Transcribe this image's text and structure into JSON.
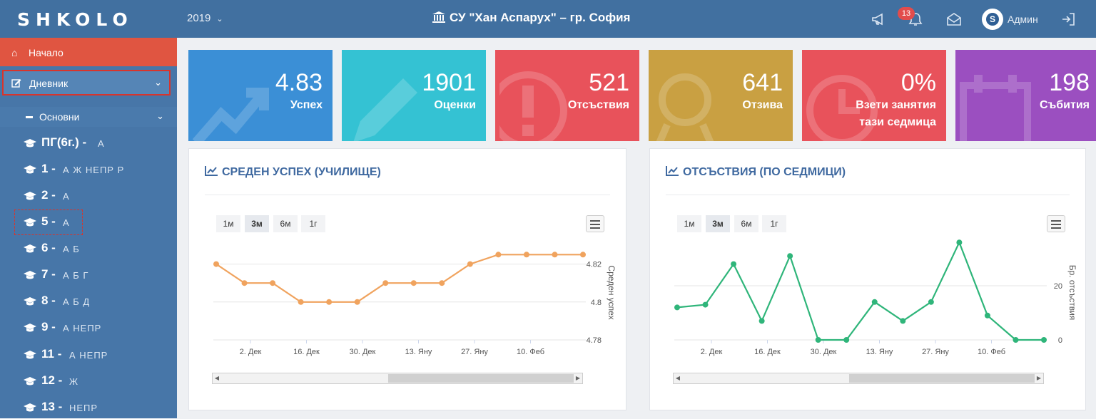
{
  "app": {
    "logo_text": "SHKOLO",
    "year": "2019",
    "school_title": "СУ \"Хан Аспарух\" – гр. София",
    "notification_count": "13",
    "user_initial": "S",
    "user_name": "Админ",
    "icons": [
      "megaphone-icon",
      "bell-icon",
      "envelope-icon",
      "logout-icon"
    ]
  },
  "sidebar": {
    "home": "Начало",
    "diary": "Дневник",
    "basic": "Основни",
    "grades": [
      {
        "num": "ПГ(6г.) -",
        "divs": "А"
      },
      {
        "num": "1 -",
        "divs": "А Ж НЕПР Р"
      },
      {
        "num": "2 -",
        "divs": "А"
      },
      {
        "num": "5 -",
        "divs": "А"
      },
      {
        "num": "6 -",
        "divs": "А Б"
      },
      {
        "num": "7 -",
        "divs": "А Б Г"
      },
      {
        "num": "8 -",
        "divs": "А Б Д"
      },
      {
        "num": "9 -",
        "divs": "А НЕПР"
      },
      {
        "num": "11 -",
        "divs": "А НЕПР"
      },
      {
        "num": "12 -",
        "divs": "Ж"
      },
      {
        "num": "13 -",
        "divs": "НЕПР"
      }
    ]
  },
  "tiles": [
    {
      "value": "4.83",
      "label": "Успех",
      "color": "#3b8fd6",
      "icon": "trend-up-icon"
    },
    {
      "value": "1901",
      "label": "Оценки",
      "color": "#34c2d3",
      "icon": "pencil-icon"
    },
    {
      "value": "521",
      "label": "Отсъствия",
      "color": "#e8525b",
      "icon": "exclamation-icon"
    },
    {
      "value": "641",
      "label": "Отзива",
      "color": "#c9a042",
      "icon": "magnifier-icon"
    },
    {
      "value": "0%",
      "label": "Взети занятия тази седмица",
      "label_line1": "Взети занятия",
      "label_line2": "тази седмица",
      "color": "#e8525b",
      "icon": "clock-icon"
    },
    {
      "value": "198",
      "label": "Събития",
      "color": "#9b4fc0",
      "icon": "calendar-icon"
    }
  ],
  "ranges": [
    "1м",
    "3м",
    "6м",
    "1г"
  ],
  "active_range": "3м",
  "chart_data": [
    {
      "type": "line",
      "title": "СРЕДЕН УСПЕХ (УЧИЛИЩЕ)",
      "ylabel": "Среден успех",
      "x_ticks": [
        "2. Дек",
        "16. Дек",
        "30. Дек",
        "13. Яну",
        "27. Яну",
        "10. Феб"
      ],
      "y_ticks": [
        4.82,
        4.8,
        4.78
      ],
      "ylim": [
        4.78,
        4.83
      ],
      "color": "#f0a35e",
      "series": [
        {
          "values": [
            4.82,
            4.81,
            4.81,
            4.8,
            4.8,
            4.8,
            4.81,
            4.81,
            4.81,
            4.82,
            4.825,
            4.825,
            4.825,
            4.825
          ]
        }
      ]
    },
    {
      "type": "line",
      "title": "ОТСЪСТВИЯ (ПО СЕДМИЦИ)",
      "ylabel": "Бр. отсъствия",
      "x_ticks": [
        "2. Дек",
        "16. Дек",
        "30. Дек",
        "13. Яну",
        "27. Яну",
        "10. Феб"
      ],
      "y_ticks": [
        20,
        0
      ],
      "ylim": [
        0,
        35
      ],
      "color": "#2fb57a",
      "series": [
        {
          "values": [
            12,
            13,
            28,
            7,
            31,
            0,
            0,
            14,
            7,
            14,
            36,
            9,
            0,
            0
          ]
        }
      ]
    }
  ]
}
